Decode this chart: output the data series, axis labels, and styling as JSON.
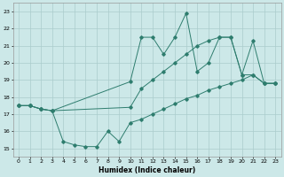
{
  "xlabel": "Humidex (Indice chaleur)",
  "xlim": [
    -0.5,
    23.5
  ],
  "ylim": [
    14.5,
    23.5
  ],
  "xticks": [
    0,
    1,
    2,
    3,
    4,
    5,
    6,
    7,
    8,
    9,
    10,
    11,
    12,
    13,
    14,
    15,
    16,
    17,
    18,
    19,
    20,
    21,
    22,
    23
  ],
  "yticks": [
    15,
    16,
    17,
    18,
    19,
    20,
    21,
    22,
    23
  ],
  "bg_color": "#cce8e8",
  "grid_color": "#aacccc",
  "line_color": "#2e7d6e",
  "s1_x": [
    0,
    1,
    2,
    3,
    10,
    11,
    12,
    13,
    14,
    15,
    16,
    17,
    18,
    19,
    20,
    21,
    22,
    23
  ],
  "s1_y": [
    17.5,
    17.5,
    17.3,
    17.2,
    18.9,
    21.5,
    21.5,
    20.5,
    21.5,
    22.9,
    19.5,
    20.0,
    21.5,
    21.5,
    19.3,
    21.3,
    18.8,
    18.8
  ],
  "s2_x": [
    0,
    1,
    2,
    3,
    4,
    5,
    6,
    7,
    8,
    9,
    10,
    11,
    12,
    13,
    14,
    15,
    16,
    17,
    18,
    19,
    20,
    21,
    22,
    23
  ],
  "s2_y": [
    17.5,
    17.5,
    17.3,
    17.2,
    15.4,
    15.2,
    15.1,
    15.1,
    16.0,
    15.4,
    16.5,
    16.7,
    17.0,
    17.3,
    17.6,
    17.9,
    18.1,
    18.4,
    18.6,
    18.8,
    19.0,
    19.3,
    18.8,
    18.8
  ],
  "s3_x": [
    0,
    1,
    2,
    3,
    10,
    11,
    12,
    13,
    14,
    15,
    16,
    17,
    18,
    19,
    20,
    21,
    22,
    23
  ],
  "s3_y": [
    17.5,
    17.5,
    17.3,
    17.2,
    17.4,
    18.5,
    19.0,
    19.5,
    20.0,
    20.5,
    21.0,
    21.3,
    21.5,
    21.5,
    19.3,
    19.3,
    18.8,
    18.8
  ]
}
